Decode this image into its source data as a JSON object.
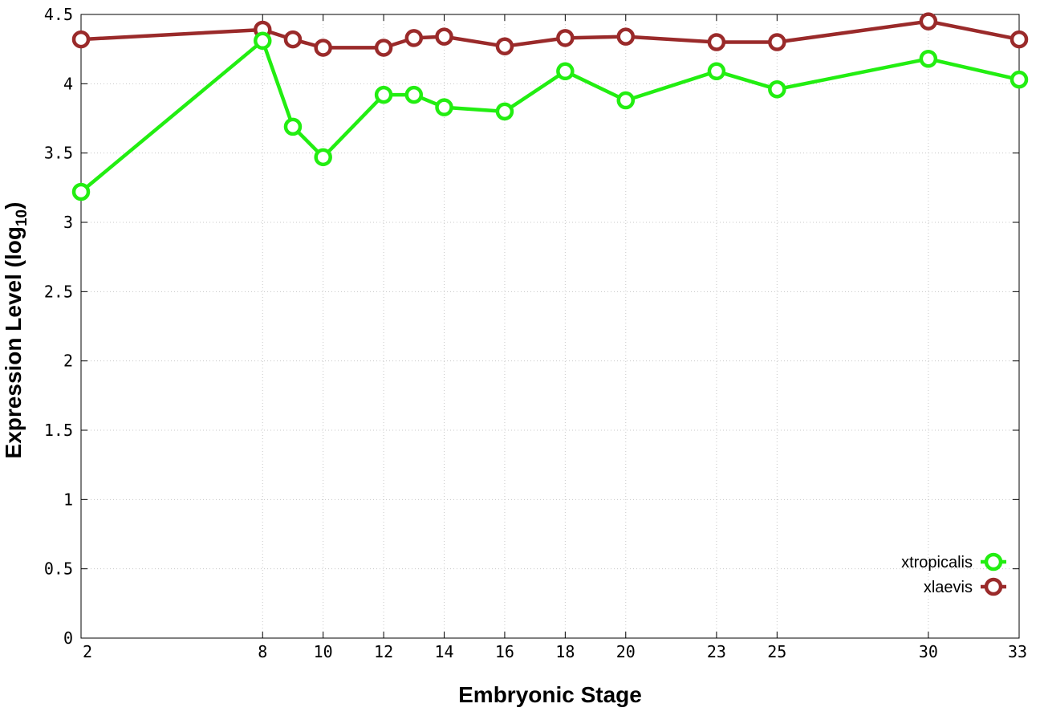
{
  "chart_data": {
    "type": "line",
    "xlabel": "Embryonic Stage",
    "ylabel_main": "Expression Level (log",
    "ylabel_sub": "10",
    "ylabel_close": ")",
    "x": [
      2,
      8,
      9,
      10,
      12,
      13,
      14,
      16,
      18,
      20,
      23,
      25,
      30,
      33
    ],
    "x_ticks": [
      "2",
      "8",
      "10",
      "12",
      "14",
      "16",
      "18",
      "20",
      "23",
      "25",
      "30",
      "33"
    ],
    "y_ticks": [
      "0",
      "0.5",
      "1",
      "1.5",
      "2",
      "2.5",
      "3",
      "3.5",
      "4",
      "4.5"
    ],
    "xlim": [
      2,
      33
    ],
    "ylim": [
      0,
      4.5
    ],
    "grid": true,
    "legend_position": "bottom-right",
    "series": [
      {
        "name": "xtropicalis",
        "color": "#22ee11",
        "values": [
          3.22,
          4.31,
          3.69,
          3.47,
          3.92,
          3.92,
          3.83,
          3.8,
          4.09,
          3.88,
          4.09,
          3.96,
          4.18,
          4.03
        ]
      },
      {
        "name": "xlaevis",
        "color": "#9a2a2a",
        "values": [
          4.32,
          4.39,
          4.32,
          4.26,
          4.26,
          4.33,
          4.34,
          4.27,
          4.33,
          4.34,
          4.3,
          4.3,
          4.45,
          4.32
        ]
      }
    ]
  }
}
